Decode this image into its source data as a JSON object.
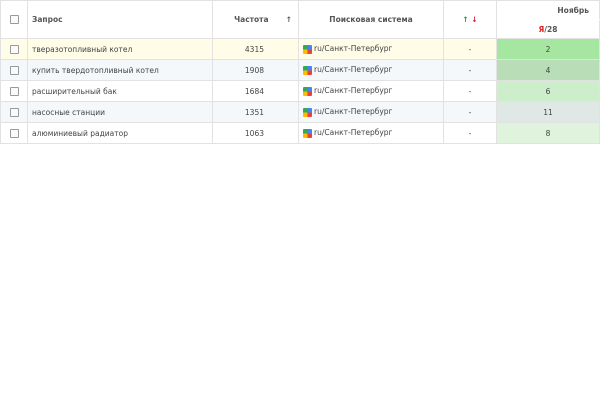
{
  "header": {
    "query": "Запрос",
    "frequency": "Частота",
    "frequency_sort": "↑",
    "search_system": "Поисковая система",
    "trend_up": "↑",
    "trend_down": "↓",
    "month": "Ноябрь",
    "engine": "Я",
    "date": "/28"
  },
  "rows": [
    {
      "query": "тверазотопливный котел",
      "frequency": 4315,
      "region": "ru/Санкт-Петербург",
      "trend": "-",
      "position": 2
    },
    {
      "query": "купить твердотопливный котел",
      "frequency": 1908,
      "region": "ru/Санкт-Петербург",
      "trend": "-",
      "position": 4
    },
    {
      "query": "расширительный бак",
      "frequency": 1684,
      "region": "ru/Санкт-Петербург",
      "trend": "-",
      "position": 6
    },
    {
      "query": "насосные станции",
      "frequency": 1351,
      "region": "ru/Санкт-Петербург",
      "trend": "-",
      "position": 11
    },
    {
      "query": "алюминиевый радиатор",
      "frequency": 1063,
      "region": "ru/Санкт-Петербург",
      "trend": "-",
      "position": 8
    }
  ]
}
